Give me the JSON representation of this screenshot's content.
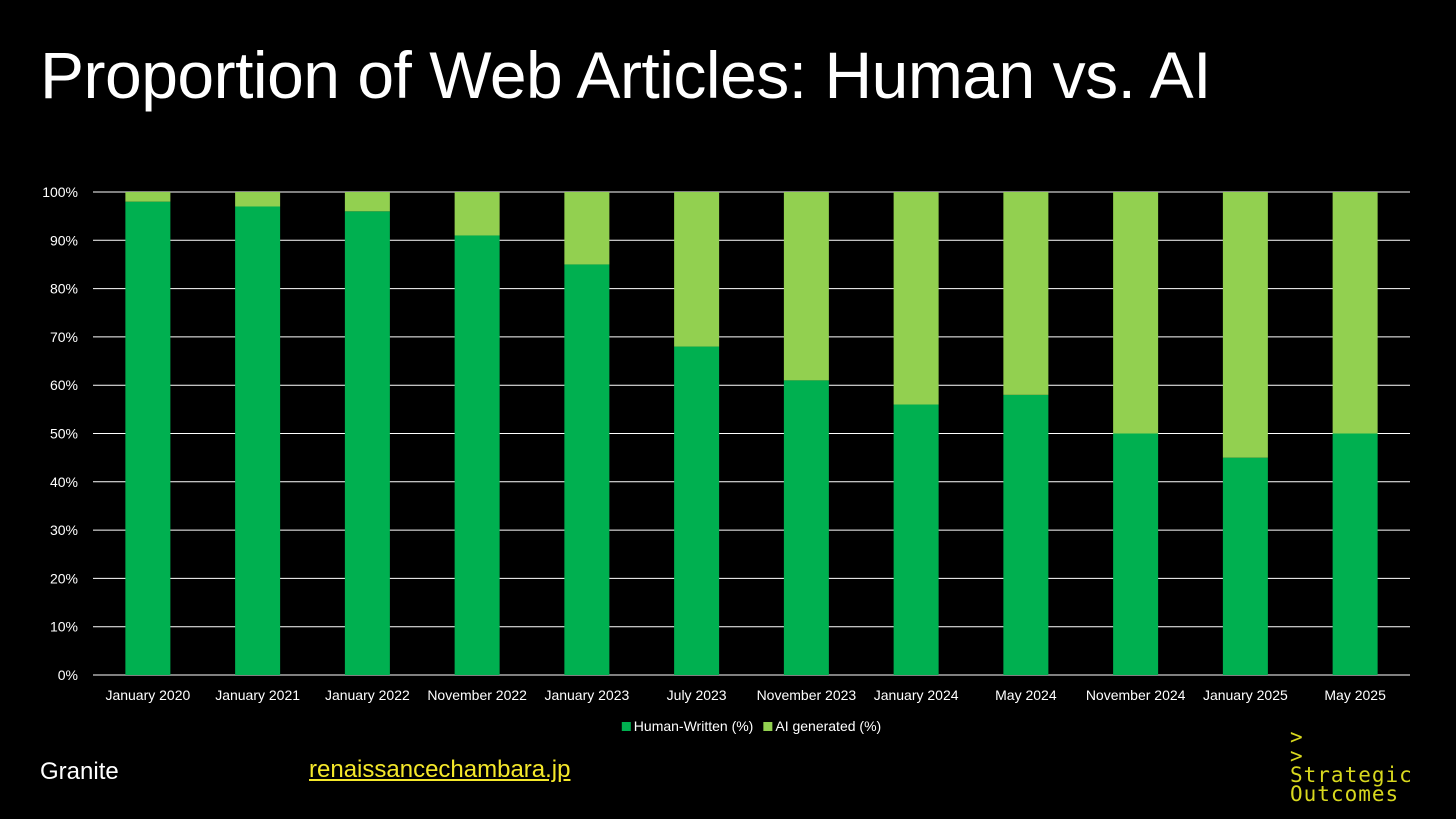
{
  "title": "Proportion of Web Articles: Human vs. AI",
  "footer": {
    "brand": "Granite",
    "link_text": "renaissancechambara.jp"
  },
  "logo": {
    "prompt_lines": [
      ">",
      ">"
    ],
    "word1": "Strategic",
    "word2": "Outcomes"
  },
  "colors": {
    "background": "#000000",
    "human": "#00b050",
    "ai": "#92d050",
    "grid": "#ffffff",
    "link": "#f5e82a",
    "logo": "#d8d81e"
  },
  "chart_data": {
    "type": "bar",
    "stacked": true,
    "categories": [
      "January 2020",
      "January 2021",
      "January 2022",
      "November 2022",
      "January 2023",
      "July 2023",
      "November 2023",
      "January 2024",
      "May 2024",
      "November 2024",
      "January 2025",
      "May 2025"
    ],
    "series": [
      {
        "name": "Human-Written (%)",
        "values": [
          98,
          97,
          96,
          91,
          85,
          68,
          61,
          56,
          58,
          50,
          45,
          50
        ]
      },
      {
        "name": "AI generated (%)",
        "values": [
          2,
          3,
          4,
          9,
          15,
          32,
          39,
          44,
          42,
          50,
          55,
          50
        ]
      }
    ],
    "yticks": [
      "0%",
      "10%",
      "20%",
      "30%",
      "40%",
      "50%",
      "60%",
      "70%",
      "80%",
      "90%",
      "100%"
    ],
    "ylim": [
      0,
      100
    ],
    "grid": true,
    "legend": "bottom-center"
  }
}
